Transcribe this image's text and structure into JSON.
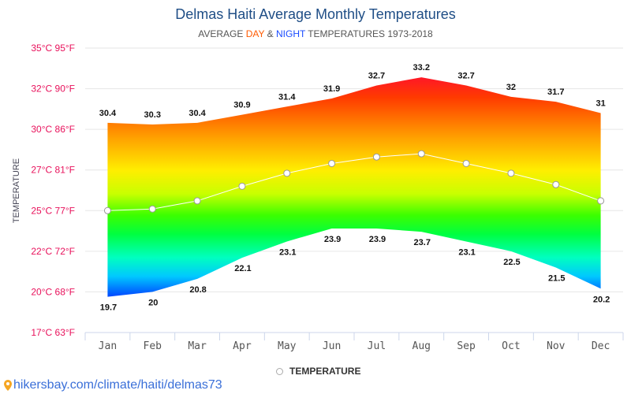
{
  "chart_data": {
    "type": "area",
    "title": "Delmas Haiti Average Monthly Temperatures",
    "subtitle": {
      "prefix": "AVERAGE ",
      "day": "DAY",
      "amp": " & ",
      "night": "NIGHT",
      "suffix": " TEMPERATURES 1973-2018"
    },
    "ylabel": "TEMPERATURE",
    "ylim": [
      17.5,
      35
    ],
    "yticks": [
      {
        "value": 35,
        "label": "35°C 95°F"
      },
      {
        "value": 32.5,
        "label": "32°C 90°F"
      },
      {
        "value": 30,
        "label": "30°C 86°F"
      },
      {
        "value": 27.5,
        "label": "27°C 81°F"
      },
      {
        "value": 25,
        "label": "25°C 77°F"
      },
      {
        "value": 22.5,
        "label": "22°C 72°F"
      },
      {
        "value": 20,
        "label": "20°C 68°F"
      },
      {
        "value": 17.5,
        "label": "17°C 63°F"
      }
    ],
    "categories": [
      "Jan",
      "Feb",
      "Mar",
      "Apr",
      "May",
      "Jun",
      "Jul",
      "Aug",
      "Sep",
      "Oct",
      "Nov",
      "Dec"
    ],
    "series": [
      {
        "name": "Day",
        "values": [
          30.4,
          30.3,
          30.4,
          30.9,
          31.4,
          31.9,
          32.7,
          33.2,
          32.7,
          32,
          31.7,
          31
        ]
      },
      {
        "name": "Night",
        "values": [
          19.7,
          20,
          20.8,
          22.1,
          23.1,
          23.9,
          23.9,
          23.7,
          23.1,
          22.5,
          21.5,
          20.2
        ]
      },
      {
        "name": "TEMPERATURE",
        "values": [
          25.0,
          25.1,
          25.6,
          26.5,
          27.3,
          27.9,
          28.3,
          28.5,
          27.9,
          27.3,
          26.6,
          25.6
        ]
      }
    ],
    "legend": "bottom-center",
    "grid": true
  },
  "colors": {
    "tick_label": "#e8115b",
    "title": "#1f4e86",
    "day": "#ff5a00",
    "night": "#1a4cff"
  },
  "footer": {
    "icon": "map-pin-icon",
    "text": "hikersbay.com/climate/haiti/delmas73"
  }
}
